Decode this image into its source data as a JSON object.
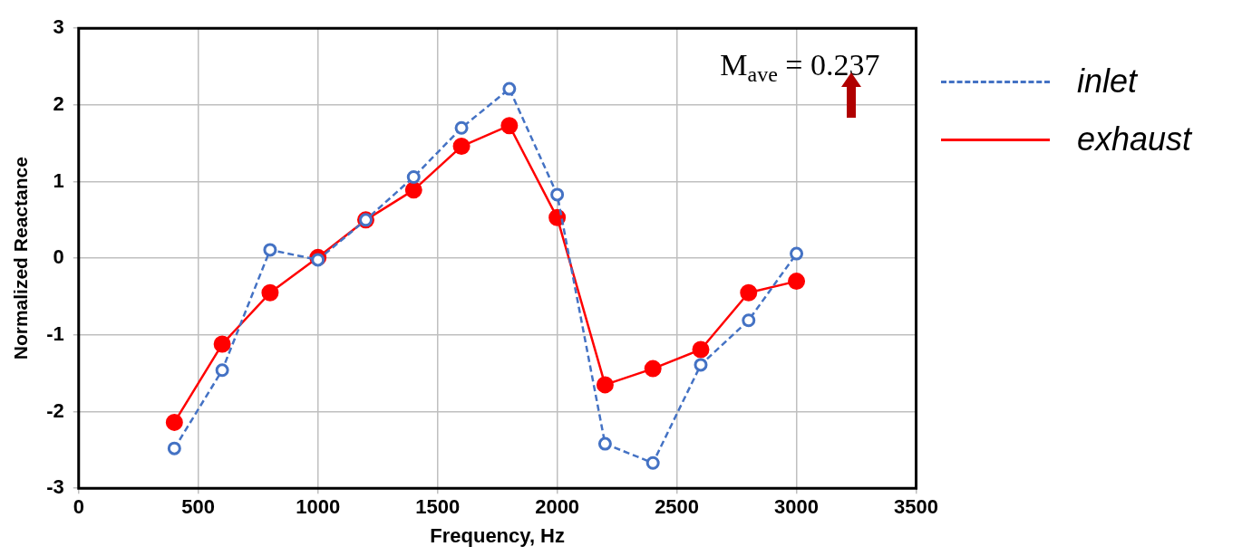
{
  "chart_data": {
    "type": "line",
    "xlabel": "Frequency, Hz",
    "ylabel": "Normalized Reactance",
    "x": [
      400,
      600,
      800,
      1000,
      1200,
      1400,
      1600,
      1800,
      2000,
      2200,
      2400,
      2600,
      2800,
      3000
    ],
    "series": [
      {
        "name": "inlet",
        "color": "#4472c4",
        "line_style": "dashed",
        "values": [
          -2.48,
          -1.46,
          0.11,
          -0.02,
          0.5,
          1.06,
          1.7,
          2.21,
          0.83,
          -2.42,
          -2.67,
          -1.39,
          -0.81,
          0.06
        ]
      },
      {
        "name": "exhaust",
        "color": "#ff0000",
        "line_style": "solid",
        "values": [
          -2.14,
          -1.12,
          -0.45,
          0.01,
          0.5,
          0.89,
          1.46,
          1.73,
          0.53,
          -1.65,
          -1.44,
          -1.19,
          -0.45,
          -0.3
        ]
      }
    ],
    "xlim": [
      0,
      3500
    ],
    "xticks": [
      0,
      500,
      1000,
      1500,
      2000,
      2500,
      3000,
      3500
    ],
    "ylim": [
      -3,
      3
    ],
    "yticks": [
      -3,
      -2,
      -1,
      0,
      1,
      2,
      3
    ],
    "grid": true,
    "marker": "circle",
    "legend": "right",
    "annotations": [
      "M$_{ave}$ = 0.237"
    ]
  }
}
